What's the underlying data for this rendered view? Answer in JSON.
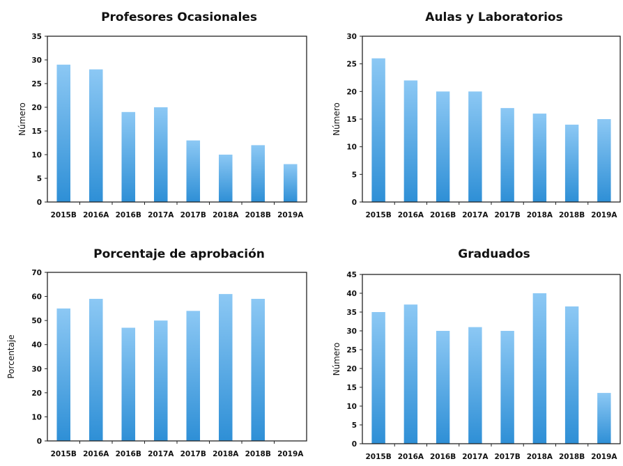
{
  "chart_data": [
    {
      "type": "bar",
      "title": "Profesores Ocasionales",
      "ylabel": "Número",
      "xlabel": "",
      "categories": [
        "2015B",
        "2016A",
        "2016B",
        "2017A",
        "2017B",
        "2018A",
        "2018B",
        "2019A"
      ],
      "values": [
        29,
        28,
        19,
        20,
        13,
        10,
        12,
        8
      ],
      "ylim": [
        0,
        35
      ],
      "yticks": [
        0,
        5,
        10,
        15,
        20,
        25,
        30,
        35
      ],
      "grid": false,
      "legend": "none",
      "color_top": "#8cc8f4",
      "color_bottom": "#2e8fd6"
    },
    {
      "type": "bar",
      "title": "Aulas y Laboratorios",
      "ylabel": "Número",
      "xlabel": "",
      "categories": [
        "2015B",
        "2016A",
        "2016B",
        "2017A",
        "2017B",
        "2018A",
        "2018B",
        "2019A"
      ],
      "values": [
        26,
        22,
        20,
        20,
        17,
        16,
        14,
        15
      ],
      "ylim": [
        0,
        30
      ],
      "yticks": [
        0,
        5,
        10,
        15,
        20,
        25,
        30
      ],
      "grid": false,
      "legend": "none",
      "color_top": "#8cc8f4",
      "color_bottom": "#2e8fd6"
    },
    {
      "type": "bar",
      "title": "Porcentaje de aprobación",
      "ylabel": "Porcentaje",
      "xlabel": "",
      "categories": [
        "2015B",
        "2016A",
        "2016B",
        "2017A",
        "2017B",
        "2018A",
        "2018B",
        "2019A"
      ],
      "values": [
        55,
        59,
        47,
        50,
        54,
        61,
        59,
        null
      ],
      "ylim": [
        0,
        70
      ],
      "yticks": [
        0,
        10,
        20,
        30,
        40,
        50,
        60,
        70
      ],
      "grid": false,
      "legend": "none",
      "color_top": "#8cc8f4",
      "color_bottom": "#2e8fd6"
    },
    {
      "type": "bar",
      "title": "Graduados",
      "ylabel": "Número",
      "xlabel": "",
      "categories": [
        "2015B",
        "2016A",
        "2016B",
        "2017A",
        "2017B",
        "2018A",
        "2018B",
        "2019A"
      ],
      "values": [
        35,
        37,
        30,
        31,
        30,
        40,
        36.5,
        13.5
      ],
      "ylim": [
        0,
        45
      ],
      "yticks": [
        0,
        5,
        10,
        15,
        20,
        25,
        30,
        35,
        40,
        45
      ],
      "grid": false,
      "legend": "none",
      "color_top": "#8cc8f4",
      "color_bottom": "#2e8fd6"
    }
  ]
}
